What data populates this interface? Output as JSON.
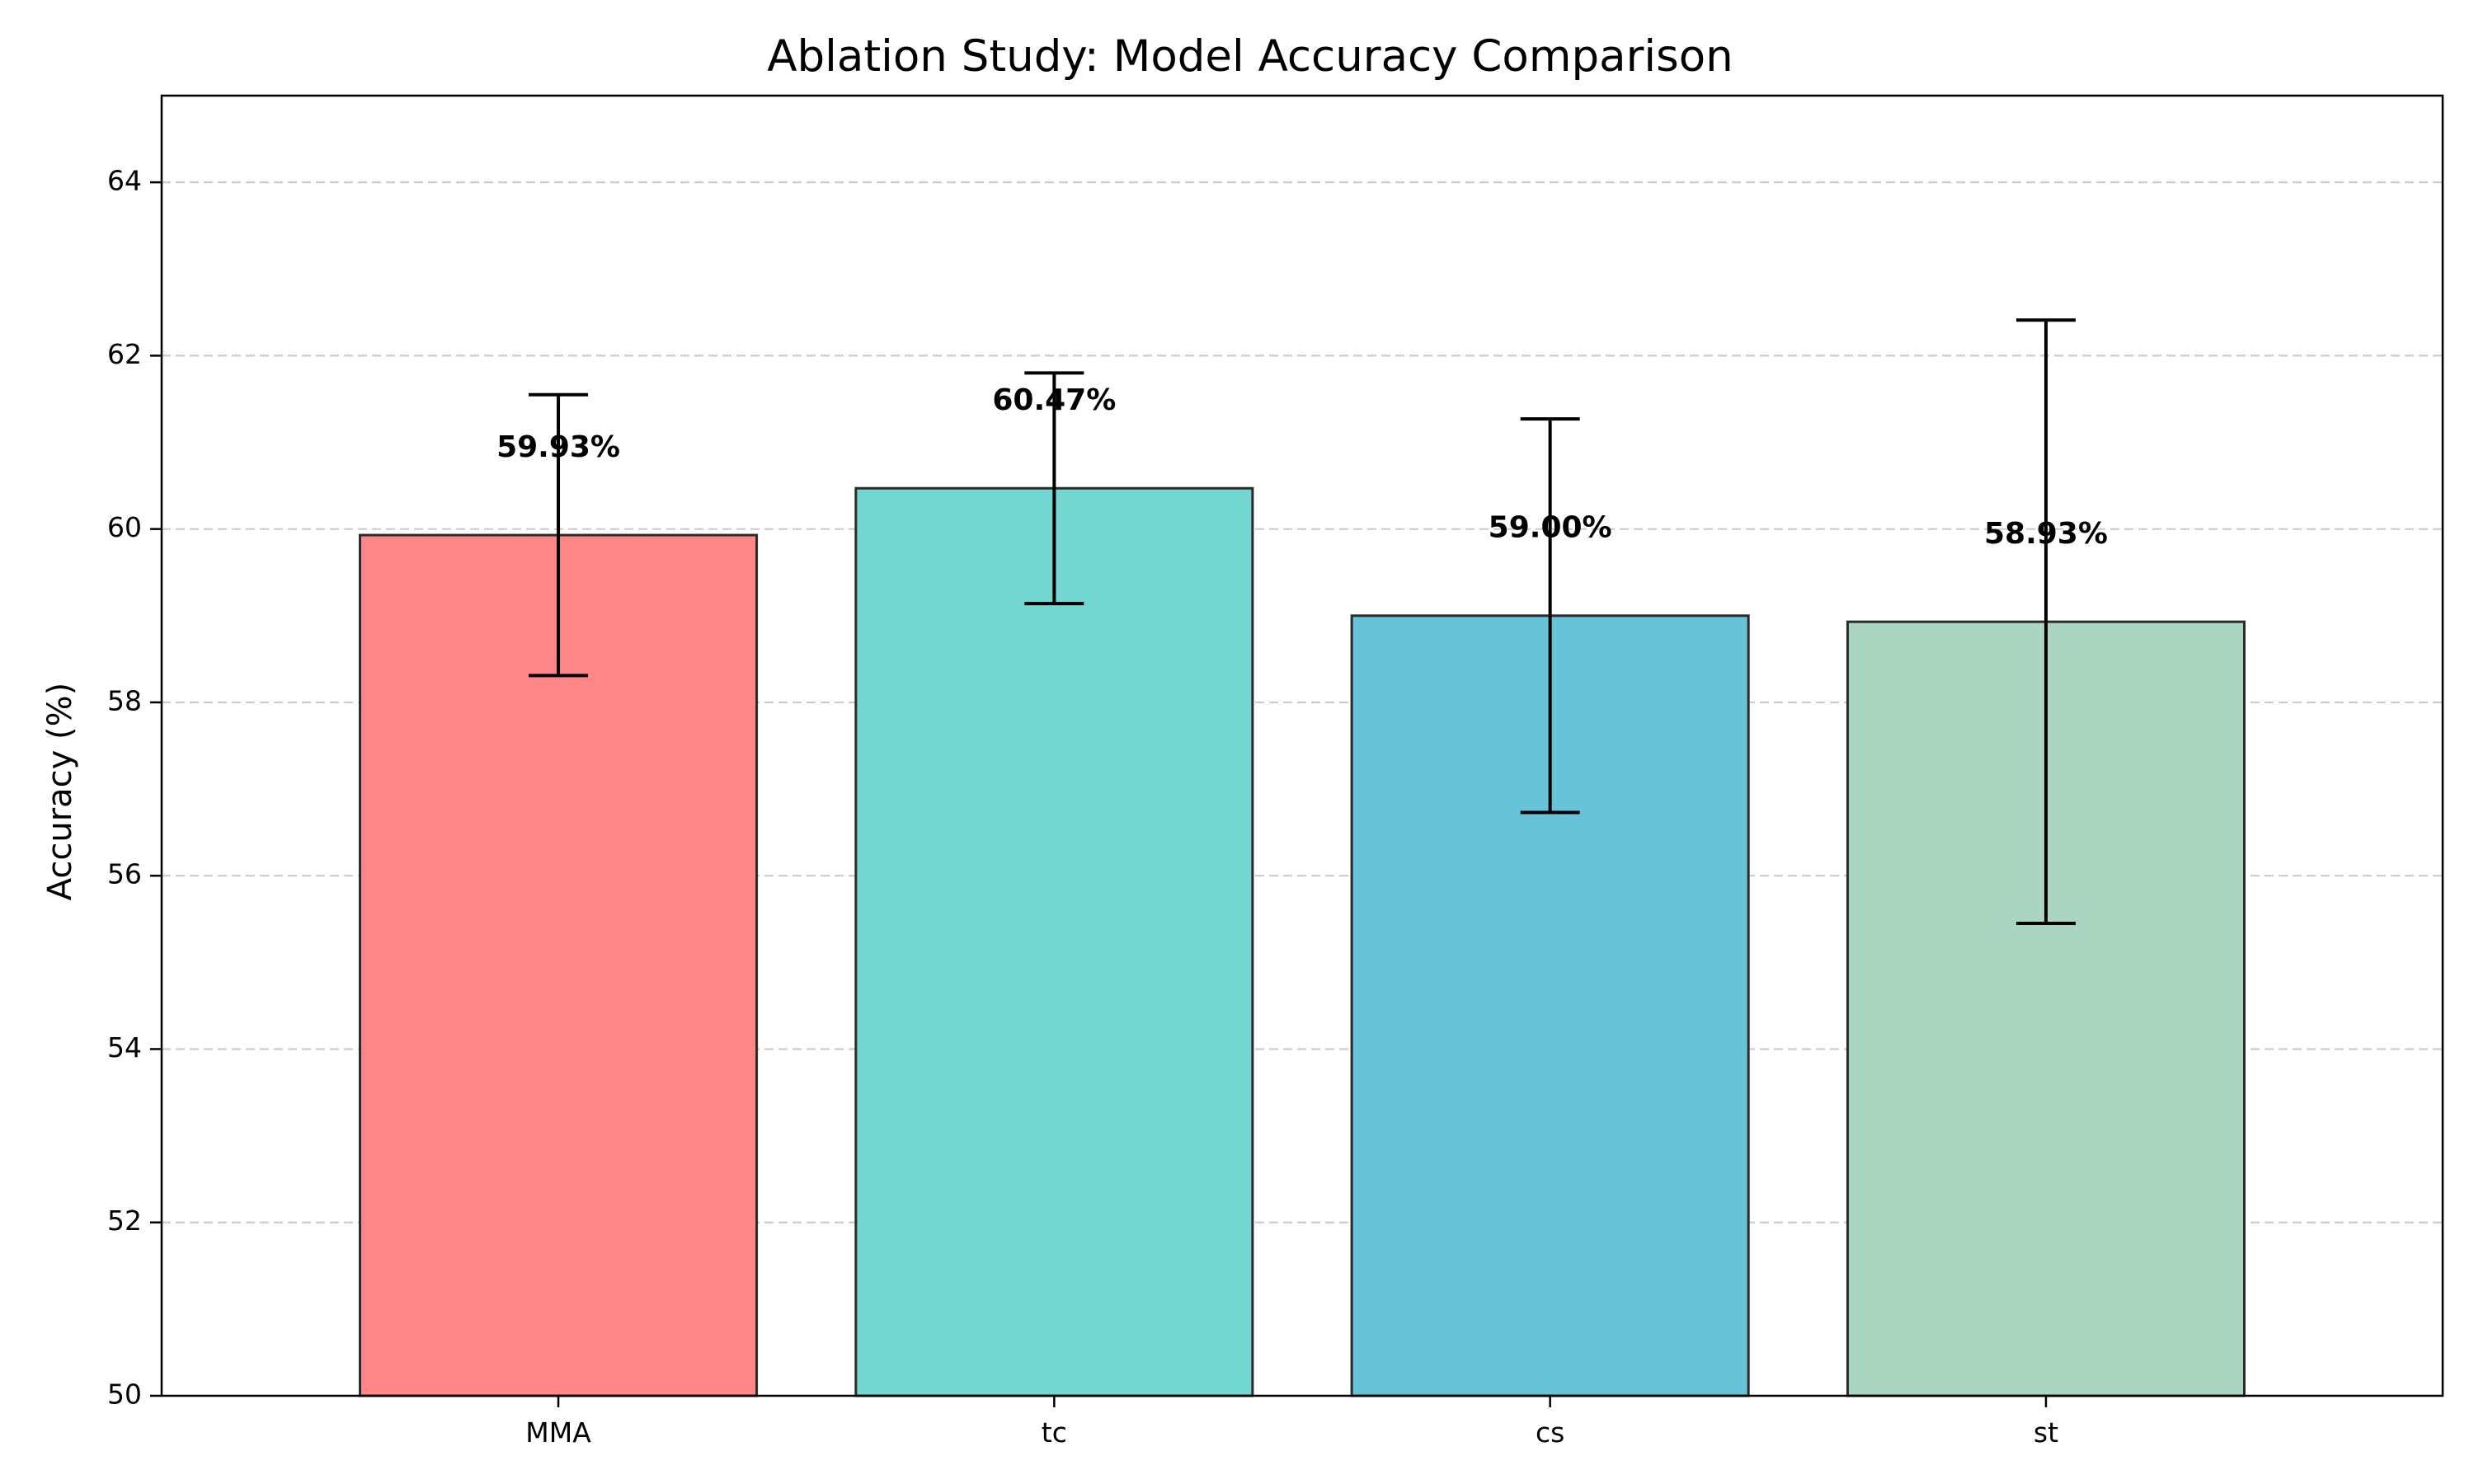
{
  "chart_data": {
    "type": "bar",
    "title": "Ablation Study: Model Accuracy Comparison",
    "xlabel": "",
    "ylabel": "Accuracy (%)",
    "categories": [
      "MMA",
      "tc",
      "cs",
      "st"
    ],
    "values": [
      59.93,
      60.47,
      59.0,
      58.93
    ],
    "errors": [
      1.62,
      1.33,
      2.27,
      3.48
    ],
    "value_labels": [
      "59.93%",
      "60.47%",
      "59.00%",
      "58.93%"
    ],
    "colors": [
      "#FF8787",
      "#74D6D0",
      "#68C3D9",
      "#AAD6C1"
    ],
    "edge_color": "#2b2b2b",
    "ylim": [
      50,
      65
    ],
    "yticks": [
      50,
      52,
      54,
      56,
      58,
      60,
      62,
      64
    ],
    "ytick_labels": [
      "50",
      "52",
      "54",
      "56",
      "58",
      "60",
      "62",
      "64"
    ],
    "grid": {
      "axis": "y",
      "style": "dashed",
      "color": "#cccccc"
    },
    "legend": "none"
  }
}
